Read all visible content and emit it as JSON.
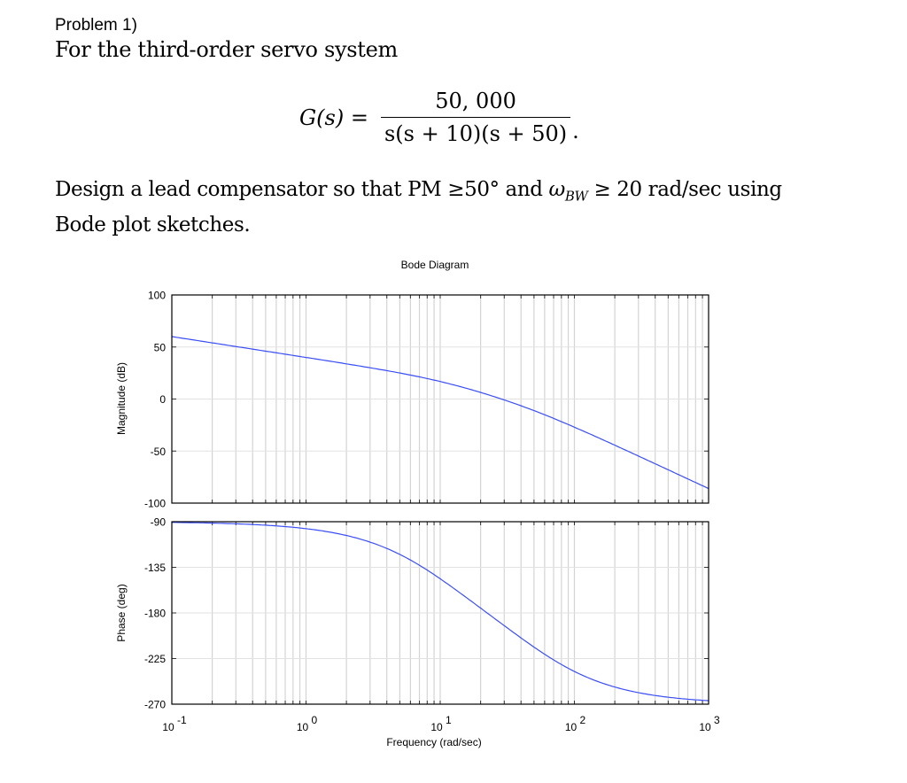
{
  "document": {
    "problem_label": "Problem 1)",
    "intro": "For the third-order servo system",
    "equation": {
      "lhs": "G(s) =",
      "numerator": "50, 000",
      "denominator": "s(s + 10)(s + 50)",
      "terminator": "."
    },
    "task_line1_a": "Design a lead compensator so that PM ≥50° and ",
    "task_omega": "ω",
    "task_sub": "BW",
    "task_line1_b": " ≥ 20 rad/sec using",
    "task_line2": "Bode plot sketches."
  },
  "chart_data": [
    {
      "type": "line",
      "title": "Bode Diagram",
      "panel": "magnitude",
      "xlabel": "Frequency  (rad/sec)",
      "ylabel": "Magnitude (dB)",
      "xscale": "log",
      "xlim": [
        0.1,
        1000
      ],
      "ylim": [
        -100,
        100
      ],
      "yticks": [
        100,
        50,
        0,
        -50,
        -100
      ],
      "grid": true,
      "line_color": "#3b4ef5",
      "x": [
        0.1,
        0.2,
        0.5,
        1,
        2,
        5,
        10,
        20,
        30,
        50,
        100,
        200,
        500,
        1000
      ],
      "values": [
        60.0,
        54.0,
        46.0,
        39.9,
        33.8,
        25.0,
        16.8,
        6.3,
        -0.8,
        -10.5,
        -28.1,
        -49.6,
        -81.7,
        -86.0
      ]
    },
    {
      "type": "line",
      "panel": "phase",
      "xlabel": "Frequency  (rad/sec)",
      "ylabel": "Phase (deg)",
      "xscale": "log",
      "xlim": [
        0.1,
        1000
      ],
      "ylim": [
        -270,
        -90
      ],
      "yticks": [
        -90,
        -135,
        -180,
        -225,
        -270
      ],
      "xticks": [
        "10^-1",
        "10^0",
        "10^1",
        "10^2",
        "10^3"
      ],
      "grid": true,
      "line_color": "#3b4ef5",
      "x": [
        0.1,
        0.2,
        0.5,
        1,
        2,
        5,
        10,
        20,
        30,
        50,
        100,
        200,
        500,
        1000
      ],
      "values": [
        -90.7,
        -91.4,
        -93.4,
        -96.9,
        -103.6,
        -122.3,
        -146.3,
        -175.2,
        -192.1,
        -213.7,
        -237.1,
        -252.8,
        -263.1,
        -266.6
      ]
    }
  ],
  "plot_labels": {
    "title": "Bode Diagram",
    "mag_ylabel": "Magnitude (dB)",
    "phase_ylabel": "Phase (deg)",
    "xlabel": "Frequency  (rad/sec)",
    "mag_ticks": [
      "100",
      "50",
      "0",
      "-50",
      "-100"
    ],
    "phase_ticks": [
      "-90",
      "-135",
      "-180",
      "-225",
      "-270"
    ],
    "x_ticks": [
      {
        "base": "10",
        "exp": "-1"
      },
      {
        "base": "10",
        "exp": "0"
      },
      {
        "base": "10",
        "exp": "1"
      },
      {
        "base": "10",
        "exp": "2"
      },
      {
        "base": "10",
        "exp": "3"
      }
    ]
  }
}
